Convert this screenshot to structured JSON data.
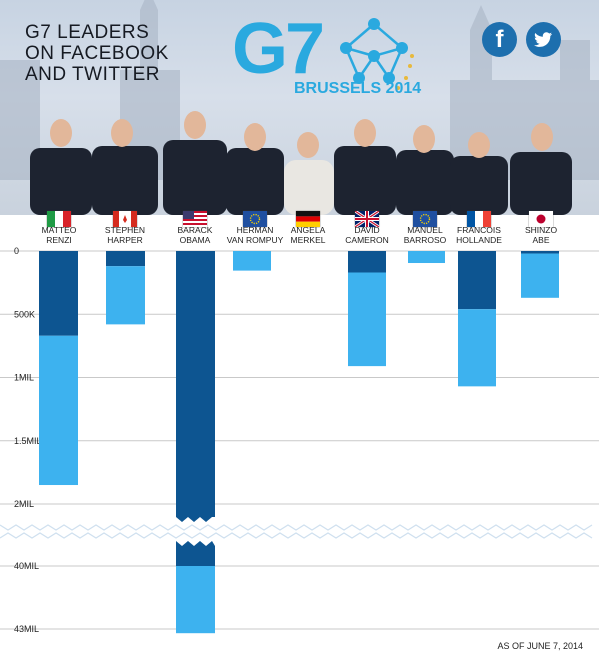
{
  "header": {
    "title_lines": [
      "G7 LEADERS",
      "ON FACEBOOK",
      "AND TWITTER"
    ],
    "logo_text": "G7",
    "logo_subtitle": "BRUSSELS 2014",
    "facebook_icon": "facebook-icon",
    "twitter_icon": "twitter-icon"
  },
  "colors": {
    "twitter": "#3db2ef",
    "facebook": "#0d5591",
    "brand": "#2aa9df",
    "gold": "#e7b93c"
  },
  "leaders": [
    {
      "name1": "MATTEO",
      "name2": "RENZI",
      "flag": "italy-flag"
    },
    {
      "name1": "STEPHEN",
      "name2": "HARPER",
      "flag": "canada-flag"
    },
    {
      "name1": "BARACK",
      "name2": "OBAMA",
      "flag": "usa-flag"
    },
    {
      "name1": "HERMAN",
      "name2": "VAN ROMPUY",
      "flag": "eu-flag"
    },
    {
      "name1": "ANGELA",
      "name2": "MERKEL",
      "flag": "germany-flag"
    },
    {
      "name1": "DAVID",
      "name2": "CAMERON",
      "flag": "uk-flag"
    },
    {
      "name1": "MANUEL",
      "name2": "BARROSO",
      "flag": "eu-flag"
    },
    {
      "name1": "FRANCOIS",
      "name2": "HOLLANDE",
      "flag": "france-flag"
    },
    {
      "name1": "SHINZO",
      "name2": "ABE",
      "flag": "japan-flag"
    }
  ],
  "chart_data": {
    "type": "bar",
    "stacked": true,
    "orientation": "downward",
    "categories": [
      "MATTEO RENZI",
      "STEPHEN HARPER",
      "BARACK OBAMA",
      "HERMAN VAN ROMPUY",
      "ANGELA MERKEL",
      "DAVID CAMERON",
      "MANUEL BARROSO",
      "FRANCOIS HOLLANDE",
      "SHINZO ABE"
    ],
    "series": [
      {
        "values": [
          670000,
          120000,
          40000000,
          0,
          0,
          170000,
          0,
          460000,
          20000
        ]
      },
      {
        "values": [
          1180000,
          460000,
          3200000,
          155000,
          0,
          740000,
          95000,
          610000,
          350000
        ]
      }
    ],
    "y_ticks": [
      "0",
      "500K",
      "1MIL",
      "1.5MIL",
      "2MIL",
      "40MIL",
      "43MIL"
    ],
    "axis_break": "between 2MIL and 40MIL",
    "gridlines": true,
    "note": "AS OF JUNE 7, 2014"
  }
}
